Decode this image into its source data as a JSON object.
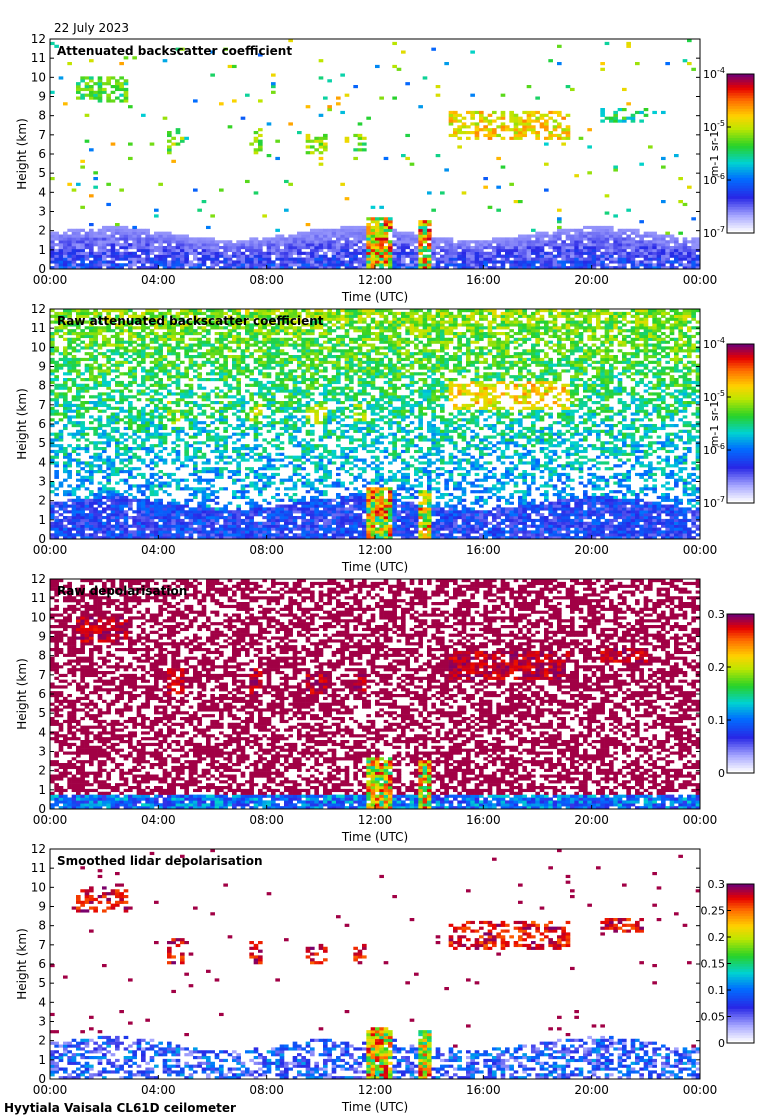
{
  "date": "22 July 2023",
  "footer": "Hyytiala Vaisala CL61D ceilometer",
  "chart_data": [
    {
      "type": "heatmap",
      "title": "Attenuated backscatter coefficient",
      "xlabel": "Time (UTC)",
      "ylabel": "Height (km)",
      "xticks": [
        "00:00",
        "04:00",
        "08:00",
        "12:00",
        "16:00",
        "20:00",
        "00:00"
      ],
      "yticks": [
        "0",
        "1",
        "2",
        "3",
        "4",
        "5",
        "6",
        "7",
        "8",
        "9",
        "10",
        "11",
        "12"
      ],
      "ylim": [
        0,
        12
      ],
      "colorbar": {
        "scale": "log",
        "ticks": [
          "10^-7",
          "10^-6",
          "10^-5",
          "10^-4"
        ],
        "unit": "m^-1 sr^-1"
      },
      "field": "beta"
    },
    {
      "type": "heatmap",
      "title": "Raw attenuated backscatter coefficient",
      "xlabel": "Time (UTC)",
      "ylabel": "Height (km)",
      "xticks": [
        "00:00",
        "04:00",
        "08:00",
        "12:00",
        "16:00",
        "20:00",
        "00:00"
      ],
      "yticks": [
        "0",
        "1",
        "2",
        "3",
        "4",
        "5",
        "6",
        "7",
        "8",
        "9",
        "10",
        "11",
        "12"
      ],
      "ylim": [
        0,
        12
      ],
      "colorbar": {
        "scale": "log",
        "ticks": [
          "10^-7",
          "10^-6",
          "10^-5",
          "10^-4"
        ],
        "unit": "m^-1 sr^-1"
      },
      "field": "beta_raw"
    },
    {
      "type": "heatmap",
      "title": "Raw depolarisation",
      "xlabel": "Time (UTC)",
      "ylabel": "Height (km)",
      "xticks": [
        "00:00",
        "04:00",
        "08:00",
        "12:00",
        "16:00",
        "20:00",
        "00:00"
      ],
      "yticks": [
        "0",
        "1",
        "2",
        "3",
        "4",
        "5",
        "6",
        "7",
        "8",
        "9",
        "10",
        "11",
        "12"
      ],
      "ylim": [
        0,
        12
      ],
      "colorbar": {
        "scale": "linear",
        "ticks": [
          "0",
          "0.1",
          "0.2",
          "0.3"
        ],
        "unit": ""
      },
      "field": "depol_raw"
    },
    {
      "type": "heatmap",
      "title": "Smoothed lidar depolarisation",
      "xlabel": "Time (UTC)",
      "ylabel": "Height (km)",
      "xticks": [
        "00:00",
        "04:00",
        "08:00",
        "12:00",
        "16:00",
        "20:00",
        "00:00"
      ],
      "yticks": [
        "0",
        "1",
        "2",
        "3",
        "4",
        "5",
        "6",
        "7",
        "8",
        "9",
        "10",
        "11",
        "12"
      ],
      "ylim": [
        0,
        12
      ],
      "colorbar": {
        "scale": "linear",
        "ticks": [
          "0",
          "0.05",
          "0.1",
          "0.15",
          "0.2",
          "0.25",
          "0.3"
        ],
        "unit": ""
      },
      "field": "depol"
    }
  ],
  "features": {
    "cirrus_layers": [
      {
        "t0": 1.0,
        "t1": 2.9,
        "h0": 8.7,
        "h1": 10.0,
        "level": 0.55
      },
      {
        "t0": 4.3,
        "t1": 5.0,
        "h0": 6.0,
        "h1": 7.4,
        "level": 0.6
      },
      {
        "t0": 7.4,
        "t1": 7.9,
        "h0": 6.0,
        "h1": 7.4,
        "level": 0.62
      },
      {
        "t0": 9.4,
        "t1": 10.3,
        "h0": 6.0,
        "h1": 7.0,
        "level": 0.62
      },
      {
        "t0": 11.2,
        "t1": 11.7,
        "h0": 6.1,
        "h1": 7.0,
        "level": 0.6
      },
      {
        "t0": 14.7,
        "t1": 19.2,
        "h0": 6.8,
        "h1": 8.3,
        "level": 0.72
      },
      {
        "t0": 20.4,
        "t1": 22.0,
        "h0": 7.6,
        "h1": 8.4,
        "level": 0.5
      }
    ],
    "low_clouds": [
      {
        "t0": 11.7,
        "t1": 12.7,
        "h0": 0.0,
        "h1": 2.7
      },
      {
        "t0": 13.6,
        "t1": 14.1,
        "h0": 0.0,
        "h1": 2.5
      }
    ],
    "boundary_layer_top_km": 2.2
  }
}
